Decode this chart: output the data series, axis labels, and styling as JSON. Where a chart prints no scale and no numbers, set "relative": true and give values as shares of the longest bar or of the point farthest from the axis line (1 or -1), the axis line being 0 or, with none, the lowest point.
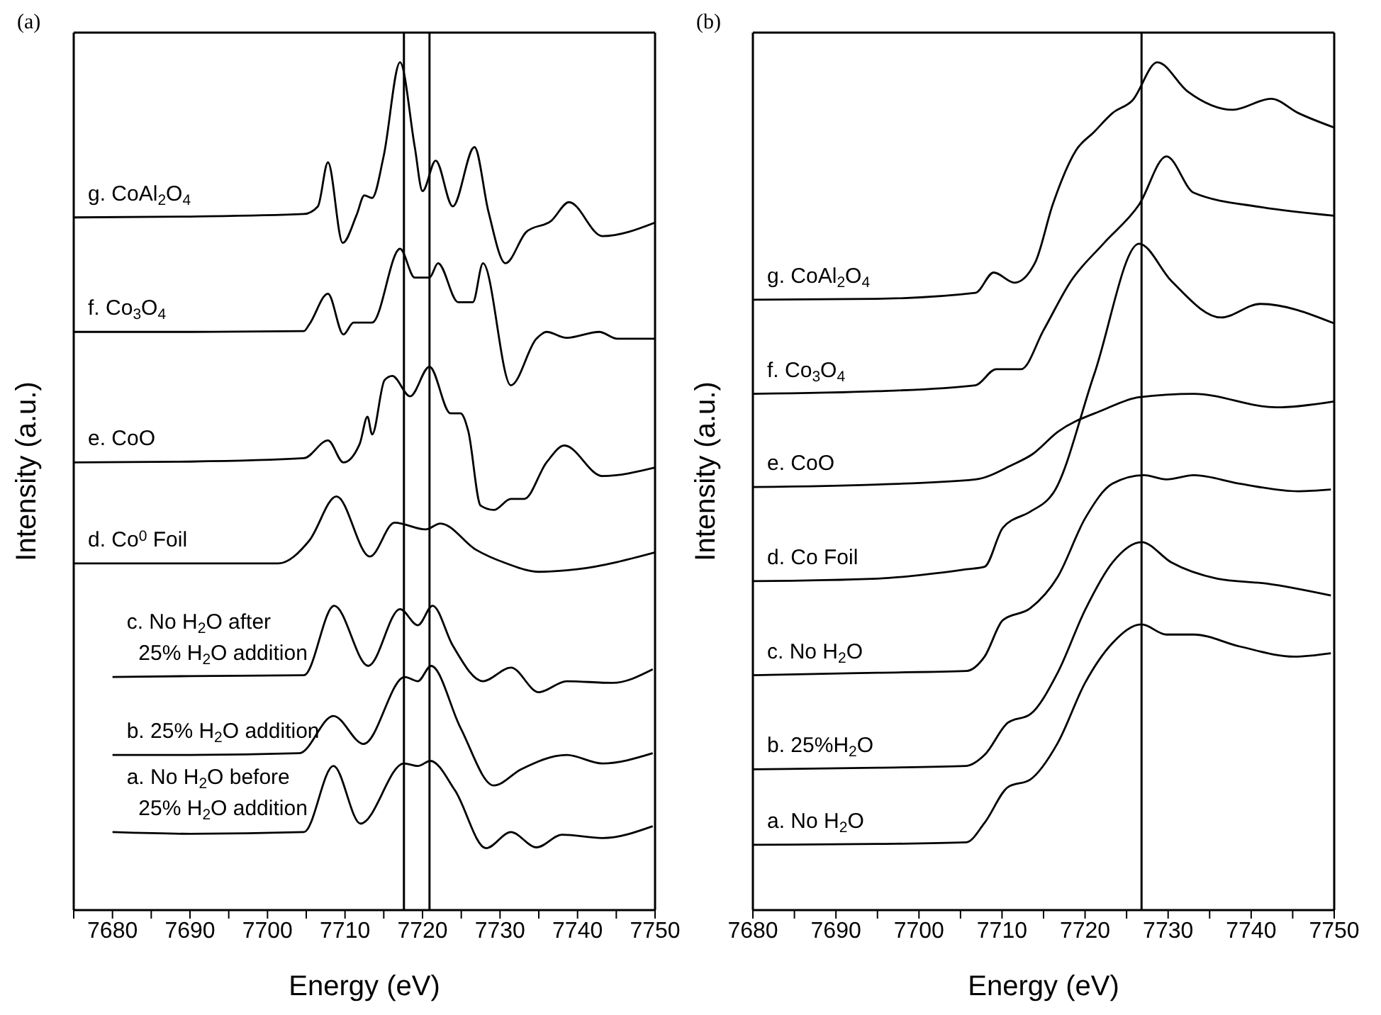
{
  "chart_data": [
    {
      "type": "line",
      "title": "(a)",
      "xlabel": "Energy (eV)",
      "ylabel": "Intensity (a.u.)",
      "relative": true,
      "tick_labels": "x",
      "xlim": [
        7675,
        7750
      ],
      "xticks": [
        {
          "value": 7675,
          "label": null
        },
        7680,
        {
          "value": 7685,
          "label": null
        },
        7690,
        {
          "value": 7695,
          "label": null
        },
        7700,
        {
          "value": 7705,
          "label": null
        },
        7710,
        {
          "value": 7715,
          "label": null
        },
        7720,
        {
          "value": 7725,
          "label": null
        },
        7730,
        {
          "value": 7735,
          "label": null
        },
        7740,
        {
          "value": 7745,
          "label": null
        },
        7750
      ],
      "ref_lines": [
        {
          "axis": "x",
          "value": 7717.6,
          "color": "#000000"
        },
        {
          "axis": "x",
          "value": 7720.9,
          "color": "#000000"
        }
      ],
      "series": [
        {
          "name": "g. CoAl$_{2}$O$_{4}$",
          "color": "#000000",
          "x": [
            7675,
            7690,
            7704.7,
            7706.5,
            7707.8,
            7709.7,
            7711.5,
            7712.5,
            7713.5,
            7715,
            7717.1,
            7719,
            7720,
            7721.7,
            7723.9,
            7726.7,
            7728.5,
            7730.7,
            7733.4,
            7736.6,
            7738.9,
            7743.2,
            7750
          ],
          "values": [
            0.817,
            0.818,
            0.821,
            0.83,
            0.882,
            0.787,
            0.82,
            0.843,
            0.84,
            0.89,
            1.0,
            0.9,
            0.848,
            0.884,
            0.83,
            0.9,
            0.824,
            0.763,
            0.8,
            0.813,
            0.835,
            0.795,
            0.811
          ]
        },
        {
          "name": "f. Co$_{3}$O$_{4}$",
          "color": "#000000",
          "x": [
            7675,
            7690,
            7704.7,
            7705.4,
            7707.8,
            7709.8,
            7711.1,
            7713.5,
            7717.1,
            7719,
            7720.9,
            7722,
            7724.6,
            7726.5,
            7727.8,
            7731.4,
            7734.7,
            7736,
            7738.6,
            7742.8,
            7745.1,
            7750
          ],
          "values": [
            0.682,
            0.682,
            0.683,
            0.691,
            0.727,
            0.679,
            0.693,
            0.693,
            0.78,
            0.746,
            0.746,
            0.763,
            0.717,
            0.717,
            0.763,
            0.619,
            0.674,
            0.682,
            0.675,
            0.682,
            0.674,
            0.674
          ]
        },
        {
          "name": "e. CoO",
          "color": "#000000",
          "x": [
            7675,
            7690,
            7704.7,
            7707.8,
            7709.8,
            7711.9,
            7712.9,
            7713.5,
            7715.1,
            7716.1,
            7718.4,
            7720.9,
            7723.6,
            7724.9,
            7725.9,
            7727.5,
            7729.2,
            7731.4,
            7733.1,
            7736,
            7738.3,
            7743.2,
            7750
          ],
          "values": [
            0.528,
            0.529,
            0.533,
            0.554,
            0.528,
            0.55,
            0.582,
            0.561,
            0.625,
            0.63,
            0.606,
            0.641,
            0.586,
            0.586,
            0.565,
            0.477,
            0.472,
            0.485,
            0.485,
            0.528,
            0.548,
            0.512,
            0.522
          ]
        },
        {
          "name": "d. Co$^{0}$ Foil",
          "color": "#000000",
          "x": [
            7675,
            7690,
            7701.4,
            7705.4,
            7708.9,
            7713.2,
            7716.4,
            7720.4,
            7722.3,
            7726.9,
            7730.8,
            7735,
            7739.9,
            7750
          ],
          "values": [
            0.409,
            0.409,
            0.409,
            0.436,
            0.488,
            0.417,
            0.457,
            0.449,
            0.456,
            0.425,
            0.409,
            0.399,
            0.402,
            0.422
          ]
        },
        {
          "name": "c. No H$_{2}$O after\n  25% H$_{2}$O addition",
          "color": "#000000",
          "x": [
            7680,
            7690,
            7704.7,
            7708.6,
            7713,
            7717.1,
            7719.4,
            7721.3,
            7723.9,
            7727.8,
            7731.4,
            7735,
            7738.6,
            7744.5,
            7749.7
          ],
          "values": [
            0.275,
            0.276,
            0.277,
            0.359,
            0.288,
            0.355,
            0.336,
            0.359,
            0.312,
            0.27,
            0.286,
            0.257,
            0.27,
            0.268,
            0.284
          ]
        },
        {
          "name": "b. 25% H$_{2}$O addition",
          "color": "#000000",
          "x": [
            7680,
            7690,
            7704.1,
            7708.5,
            7712.4,
            7717.7,
            7719.4,
            7721.1,
            7724.9,
            7729.2,
            7732.7,
            7738.6,
            7743.2,
            7749.7
          ],
          "values": [
            0.183,
            0.183,
            0.185,
            0.229,
            0.196,
            0.275,
            0.27,
            0.288,
            0.215,
            0.147,
            0.166,
            0.183,
            0.173,
            0.185
          ]
        },
        {
          "name": "a. No H$_{2}$O before\n  25% H$_{2}$O addition",
          "color": "#000000",
          "x": [
            7680,
            7690,
            7704.7,
            7708.5,
            7712,
            7717.6,
            7719.4,
            7721,
            7724.2,
            7728.2,
            7731.4,
            7734.7,
            7738,
            7743.2,
            7749.7
          ],
          "values": [
            0.092,
            0.09,
            0.092,
            0.17,
            0.102,
            0.173,
            0.17,
            0.176,
            0.141,
            0.073,
            0.092,
            0.074,
            0.089,
            0.085,
            0.099
          ]
        }
      ]
    },
    {
      "type": "line",
      "title": "(b)",
      "xlabel": "Energy (eV)",
      "ylabel": "Intensity (a.u.)",
      "relative": true,
      "tick_labels": "x",
      "xlim": [
        7680,
        7750
      ],
      "xticks": [
        7680,
        {
          "value": 7685,
          "label": null
        },
        7690,
        {
          "value": 7695,
          "label": null
        },
        7700,
        {
          "value": 7705,
          "label": null
        },
        7710,
        {
          "value": 7715,
          "label": null
        },
        7720,
        {
          "value": 7725,
          "label": null
        },
        7730,
        {
          "value": 7735,
          "label": null
        },
        7740,
        {
          "value": 7745,
          "label": null
        },
        7750
      ],
      "ref_lines": [
        {
          "axis": "x",
          "value": 7726.8,
          "color": "#000000"
        }
      ],
      "series": [
        {
          "name": "g. CoAl$_{2}$O$_{4}$",
          "color": "#000000",
          "x": [
            7680,
            7694.8,
            7706.8,
            7709,
            7711.5,
            7714,
            7716.1,
            7718.9,
            7721.1,
            7723.3,
            7725.7,
            7728.7,
            7732.3,
            7737.8,
            7742.4,
            7745.7,
            7750
          ],
          "values": [
            0.72,
            0.721,
            0.728,
            0.752,
            0.74,
            0.764,
            0.832,
            0.896,
            0.918,
            0.94,
            0.955,
            1.0,
            0.966,
            0.944,
            0.957,
            0.94,
            0.923
          ]
        },
        {
          "name": "f. Co$_{3}$O$_{4}$",
          "color": "#000000",
          "x": [
            7680,
            7695,
            7706.8,
            7709.3,
            7712.3,
            7715,
            7718.3,
            7722.2,
            7726.5,
            7729.8,
            7733.1,
            7741.3,
            7750
          ],
          "values": [
            0.609,
            0.612,
            0.619,
            0.638,
            0.638,
            0.684,
            0.742,
            0.786,
            0.832,
            0.889,
            0.846,
            0.829,
            0.819
          ]
        },
        {
          "name": "e. CoO",
          "color": "#000000",
          "x": [
            7680,
            7695,
            7706.8,
            7711.2,
            7713.7,
            7716.7,
            7722.2,
            7726.5,
            7733.1,
            7743,
            7750
          ],
          "values": [
            0.499,
            0.502,
            0.508,
            0.525,
            0.538,
            0.564,
            0.59,
            0.605,
            0.609,
            0.593,
            0.6
          ]
        },
        {
          "name": "d. Co Foil",
          "color": "#000000",
          "x": [
            7680,
            7695,
            7705.7,
            7707.9,
            7710.1,
            7713.4,
            7715.6,
            7716.1,
            7721.1,
            7726.5,
            7730.4,
            7736.4,
            7741.1,
            7750
          ],
          "values": [
            0.388,
            0.391,
            0.402,
            0.405,
            0.451,
            0.47,
            0.485,
            0.491,
            0.632,
            0.786,
            0.742,
            0.699,
            0.715,
            0.692
          ]
        },
        {
          "name": "c. No H$_{2}$O",
          "color": "#000000",
          "x": [
            7680,
            7695,
            7705.7,
            7707.9,
            7710.1,
            7713.4,
            7716.7,
            7720,
            7723.3,
            7727.1,
            7729.8,
            7733.1,
            7738.6,
            7745.7,
            7749.6
          ],
          "values": [
            0.277,
            0.28,
            0.282,
            0.299,
            0.342,
            0.356,
            0.393,
            0.462,
            0.503,
            0.513,
            0.508,
            0.513,
            0.503,
            0.494,
            0.496
          ]
        },
        {
          "name": "b. 25%H$_{2}$O",
          "color": "#000000",
          "x": [
            7680,
            7695,
            7705.7,
            7707.9,
            7710.7,
            7713.4,
            7716.7,
            7720,
            7723.3,
            7726.8,
            7730.4,
            7735.9,
            7741.9,
            7749.6
          ],
          "values": [
            0.166,
            0.168,
            0.17,
            0.183,
            0.221,
            0.231,
            0.28,
            0.354,
            0.41,
            0.434,
            0.41,
            0.391,
            0.385,
            0.371
          ]
        },
        {
          "name": "a. No H$_{2}$O",
          "color": "#000000",
          "x": [
            7680,
            7695,
            7705.7,
            7707.9,
            7710.7,
            7713.4,
            7716.7,
            7720,
            7723.3,
            7726.8,
            7729.8,
            7733.1,
            7738.6,
            7745.2,
            7749.6
          ],
          "values": [
            0.077,
            0.078,
            0.08,
            0.103,
            0.145,
            0.154,
            0.197,
            0.268,
            0.315,
            0.337,
            0.325,
            0.325,
            0.311,
            0.299,
            0.303
          ]
        }
      ]
    }
  ]
}
